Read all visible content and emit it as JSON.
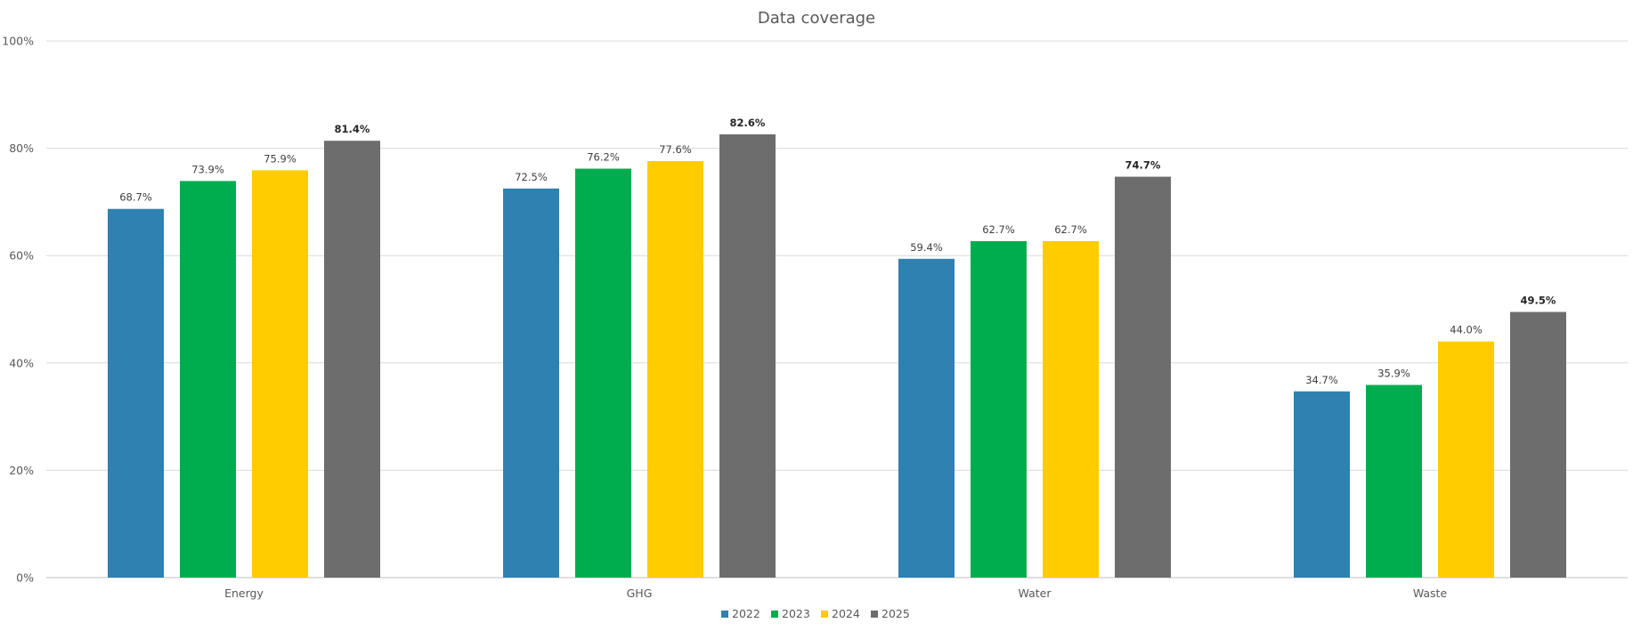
{
  "chart_data": {
    "type": "bar",
    "title": "Data coverage",
    "xlabel": "",
    "ylabel": "",
    "ylim": [
      0,
      100
    ],
    "y_ticks": [
      0,
      20,
      40,
      60,
      80,
      100
    ],
    "y_tick_labels": [
      "0%",
      "20%",
      "40%",
      "60%",
      "80%",
      "100%"
    ],
    "grid": true,
    "legend_position": "bottom",
    "categories": [
      "Energy",
      "GHG",
      "Water",
      "Waste"
    ],
    "series": [
      {
        "name": "2022",
        "color": "#2e81b0",
        "values": [
          68.7,
          72.5,
          59.4,
          34.7
        ],
        "labels": [
          "68.7%",
          "72.5%",
          "59.4%",
          "34.7%"
        ],
        "bold_labels": false
      },
      {
        "name": "2023",
        "color": "#00ad4e",
        "values": [
          73.9,
          76.2,
          62.7,
          35.9
        ],
        "labels": [
          "73.9%",
          "76.2%",
          "62.7%",
          "35.9%"
        ],
        "bold_labels": false
      },
      {
        "name": "2024",
        "color": "#ffcc00",
        "values": [
          75.9,
          77.6,
          62.7,
          44.0
        ],
        "labels": [
          "75.9%",
          "77.6%",
          "62.7%",
          "44.0%"
        ],
        "bold_labels": false
      },
      {
        "name": "2025",
        "color": "#6d6d6d",
        "values": [
          81.4,
          82.6,
          74.7,
          49.5
        ],
        "labels": [
          "81.4%",
          "82.6%",
          "74.7%",
          "49.5%"
        ],
        "bold_labels": true
      }
    ]
  }
}
